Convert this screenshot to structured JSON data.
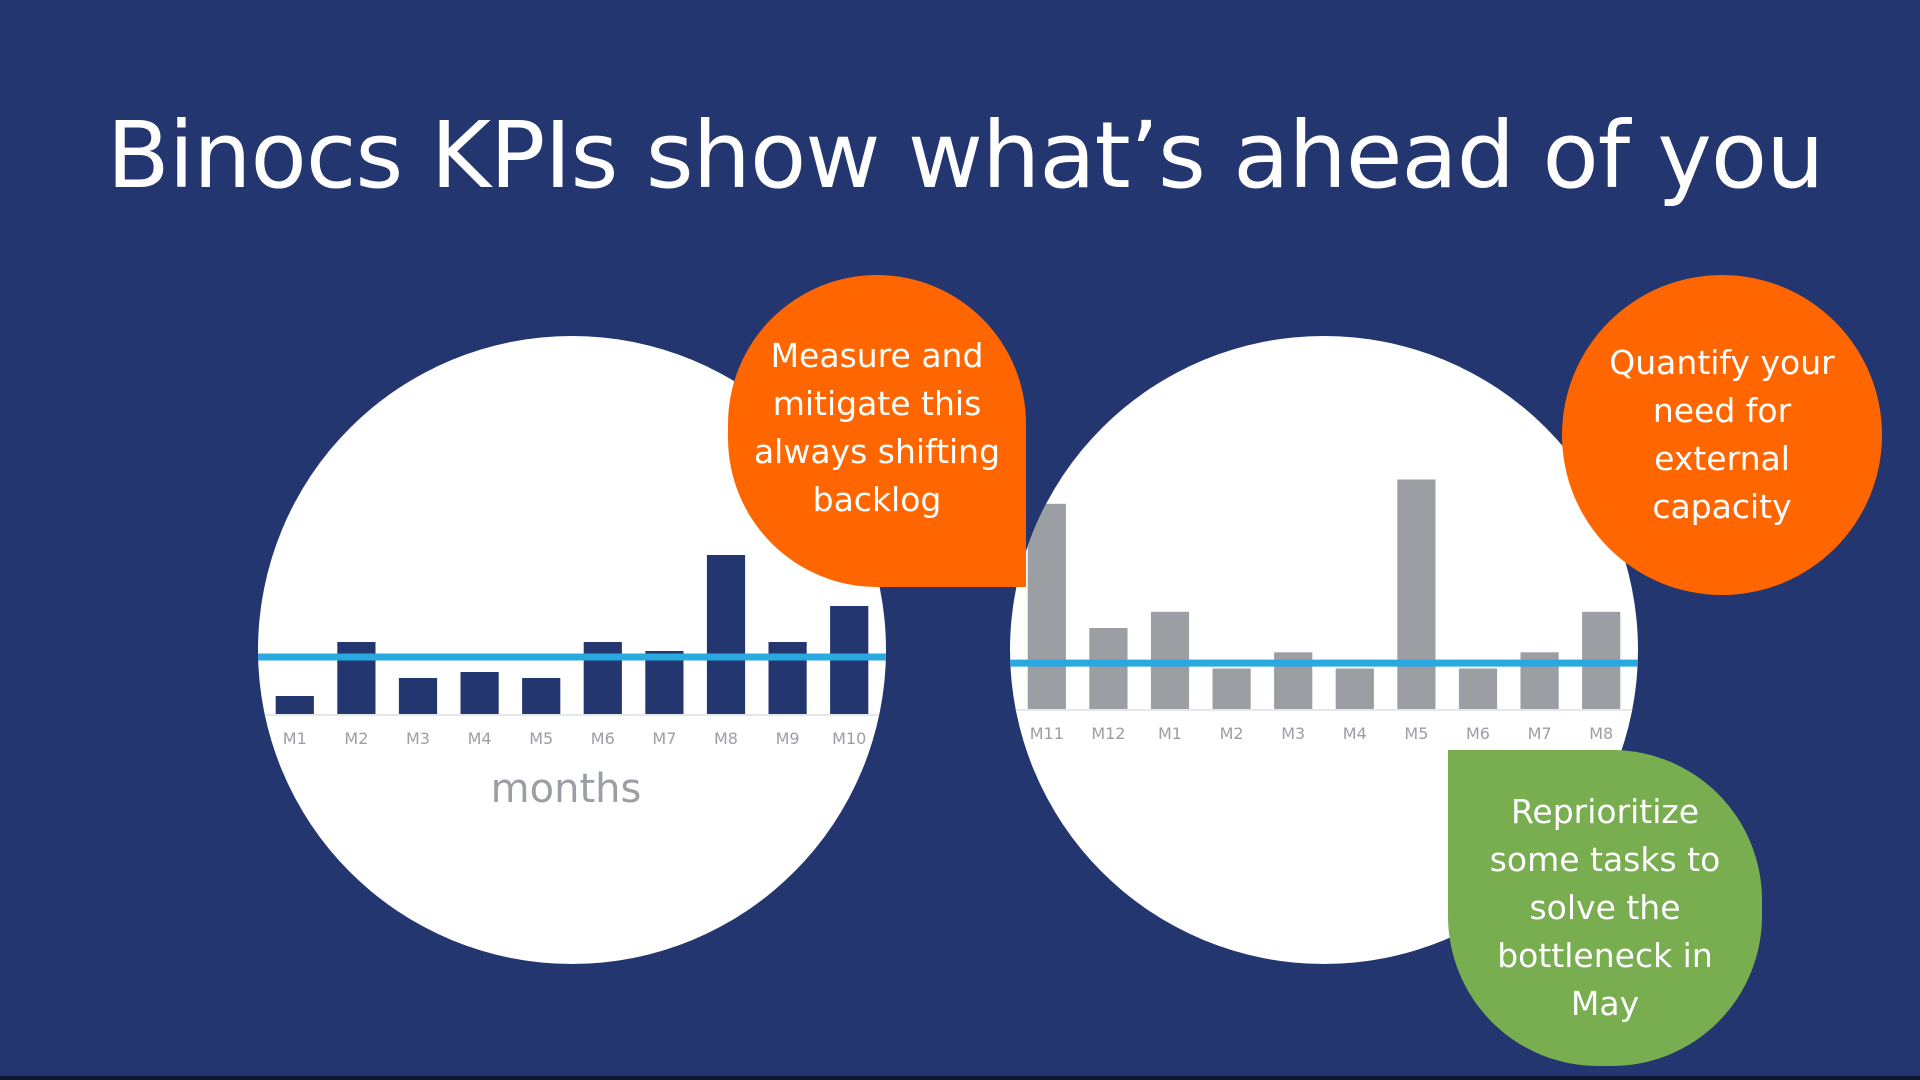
{
  "slide": {
    "title": "Binocs KPIs show what’s ahead of you"
  },
  "colors": {
    "background": "#243670",
    "left_bars": "#243670",
    "right_bars": "#9b9ea3",
    "threshold_line": "#29a9e0",
    "orange_bubble": "#ff6600",
    "green_bubble": "#78ad50"
  },
  "callouts": {
    "backlog": "Measure and mitigate this always shifting backlog",
    "capacity": "Quantify your need for external capacity",
    "reprioritize": "Reprioritize some tasks to solve the bottleneck in May"
  },
  "chart_data": [
    {
      "type": "bar",
      "title": "",
      "xlabel": "months",
      "ylabel": "",
      "categories": [
        "M1",
        "M2",
        "M3",
        "M4",
        "M5",
        "M6",
        "M7",
        "M8",
        "M9",
        "M10"
      ],
      "values": [
        0.6,
        2.4,
        1.2,
        1.4,
        1.2,
        2.4,
        2.1,
        5.3,
        2.4,
        3.6
      ],
      "threshold": 1.9,
      "ylim": [
        0,
        6
      ],
      "grid": false,
      "legend": "none",
      "bar_color": "#243670"
    },
    {
      "type": "bar",
      "title": "",
      "xlabel": "",
      "ylabel": "",
      "categories": [
        "M11",
        "M12",
        "M1",
        "M2",
        "M3",
        "M4",
        "M5",
        "M6",
        "M7",
        "M8"
      ],
      "values": [
        7.6,
        3.0,
        3.6,
        1.5,
        2.1,
        1.5,
        8.5,
        1.5,
        2.1,
        3.6
      ],
      "threshold": 1.7,
      "ylim": [
        0,
        9
      ],
      "grid": false,
      "legend": "none",
      "bar_color": "#9b9ea3"
    }
  ]
}
